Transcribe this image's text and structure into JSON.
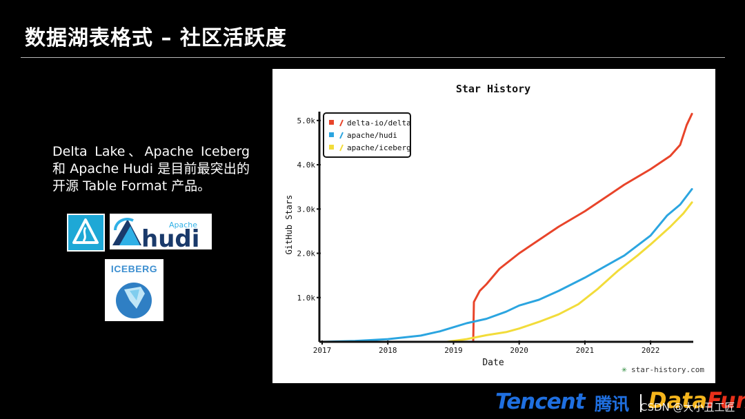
{
  "slide": {
    "title": "数据湖表格式 – 社区活跃度",
    "description": "Delta Lake、Apache Iceberg 和 Apache Hudi 是目前最突出的开源 Table Format 产品。",
    "logos": {
      "hudi_small": "Apache",
      "hudi_big": "hudi",
      "iceberg": "ICEBERG"
    },
    "footer": {
      "tencent": "Tencent",
      "tencent_cn": "腾讯",
      "datafun_a": "Data",
      "datafun_b": "Fun.",
      "watermark": "CSDN @大小丑工匠"
    }
  },
  "chart_data": {
    "type": "line",
    "title": "Star History",
    "xlabel": "Date",
    "ylabel": "GitHub Stars",
    "watermark": "star-history.com",
    "xlim": [
      2017.0,
      2022.65
    ],
    "ylim": [
      0,
      5200
    ],
    "x_ticks": [
      2017,
      2018,
      2019,
      2020,
      2021,
      2022
    ],
    "x_tick_labels": [
      "2017",
      "2018",
      "2019",
      "2020",
      "2021",
      "2022"
    ],
    "y_ticks": [
      1000,
      2000,
      3000,
      4000,
      5000
    ],
    "y_tick_labels": [
      "1.0k",
      "2.0k",
      "3.0k",
      "4.0k",
      "5.0k"
    ],
    "legend_position": "top-left",
    "series": [
      {
        "name": "delta-io/delta",
        "color": "#e8442a",
        "points": [
          [
            2019.3,
            0
          ],
          [
            2019.31,
            900
          ],
          [
            2019.4,
            1150
          ],
          [
            2019.5,
            1300
          ],
          [
            2019.7,
            1650
          ],
          [
            2020.0,
            2000
          ],
          [
            2020.3,
            2300
          ],
          [
            2020.6,
            2600
          ],
          [
            2021.0,
            2950
          ],
          [
            2021.3,
            3250
          ],
          [
            2021.6,
            3550
          ],
          [
            2022.0,
            3900
          ],
          [
            2022.3,
            4200
          ],
          [
            2022.45,
            4450
          ],
          [
            2022.55,
            4900
          ],
          [
            2022.63,
            5150
          ]
        ]
      },
      {
        "name": "apache/hudi",
        "color": "#2ba5e0",
        "points": [
          [
            2017.0,
            0
          ],
          [
            2017.5,
            20
          ],
          [
            2018.0,
            60
          ],
          [
            2018.5,
            140
          ],
          [
            2018.8,
            240
          ],
          [
            2019.0,
            330
          ],
          [
            2019.2,
            420
          ],
          [
            2019.5,
            520
          ],
          [
            2019.8,
            680
          ],
          [
            2020.0,
            820
          ],
          [
            2020.3,
            950
          ],
          [
            2020.6,
            1150
          ],
          [
            2021.0,
            1450
          ],
          [
            2021.3,
            1700
          ],
          [
            2021.6,
            1950
          ],
          [
            2022.0,
            2400
          ],
          [
            2022.25,
            2850
          ],
          [
            2022.45,
            3100
          ],
          [
            2022.63,
            3450
          ]
        ]
      },
      {
        "name": "apache/iceberg",
        "color": "#f2dc3a",
        "points": [
          [
            2018.9,
            0
          ],
          [
            2019.2,
            60
          ],
          [
            2019.5,
            150
          ],
          [
            2019.8,
            220
          ],
          [
            2020.0,
            300
          ],
          [
            2020.3,
            450
          ],
          [
            2020.6,
            620
          ],
          [
            2020.9,
            850
          ],
          [
            2021.2,
            1200
          ],
          [
            2021.5,
            1600
          ],
          [
            2021.8,
            1950
          ],
          [
            2022.0,
            2200
          ],
          [
            2022.3,
            2600
          ],
          [
            2022.5,
            2900
          ],
          [
            2022.63,
            3150
          ]
        ]
      }
    ]
  }
}
